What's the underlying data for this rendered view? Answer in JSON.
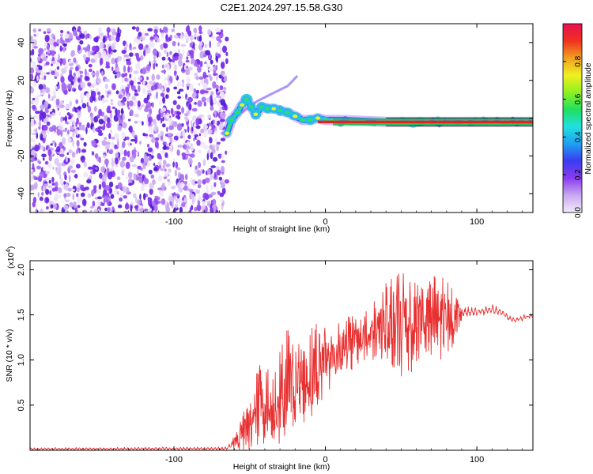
{
  "title": "C2E1.2024.297.15.58.G30",
  "colors": {
    "snr_line": "#e83030",
    "ridge_line": "#e82020",
    "scatter": "#7a1fe0",
    "axes": "#000000",
    "background": "#ffffff"
  },
  "colorbar": {
    "label": "Normalized spectral amplitude",
    "range": [
      0,
      1
    ],
    "ticks": [
      {
        "value": 0.0,
        "label": "0.0"
      },
      {
        "value": 0.2,
        "label": "0.2"
      },
      {
        "value": 0.4,
        "label": "0.4"
      },
      {
        "value": 0.6,
        "label": "0.6"
      },
      {
        "value": 0.8,
        "label": "0.8"
      }
    ],
    "colormap": [
      "#f2ecfb",
      "#c9a8f0",
      "#8a3cf0",
      "#3a3cf0",
      "#1fa0f0",
      "#20e0e0",
      "#20e060",
      "#90f020",
      "#f0f020",
      "#f0a020",
      "#f03020",
      "#e81050"
    ]
  },
  "chart_data": [
    {
      "type": "heatmap",
      "name": "spectrogram",
      "xlabel": "Height of straight line (km)",
      "ylabel": "Frequency (Hz)",
      "xlim": [
        -195,
        137
      ],
      "ylim": [
        -50,
        50
      ],
      "xticks": [
        {
          "value": -100,
          "label": "-100"
        },
        {
          "value": 0,
          "label": "0"
        },
        {
          "value": 100,
          "label": "100"
        }
      ],
      "yticks": [
        {
          "value": -40,
          "label": "-40"
        },
        {
          "value": -20,
          "label": "-20"
        },
        {
          "value": 0,
          "label": "0"
        },
        {
          "value": 20,
          "label": "20"
        },
        {
          "value": 40,
          "label": "40"
        }
      ],
      "noise_region": {
        "x_min": -195,
        "x_max": -65,
        "freq_range": [
          -50,
          48
        ]
      },
      "ridge": [
        {
          "x": -65,
          "f": -8
        },
        {
          "x": -62,
          "f": -1
        },
        {
          "x": -58,
          "f": 3
        },
        {
          "x": -55,
          "f": 7
        },
        {
          "x": -52,
          "f": 10
        },
        {
          "x": -49,
          "f": 6
        },
        {
          "x": -46,
          "f": 2
        },
        {
          "x": -42,
          "f": 6
        },
        {
          "x": -38,
          "f": 5
        },
        {
          "x": -34,
          "f": 5
        },
        {
          "x": -30,
          "f": 4
        },
        {
          "x": -25,
          "f": 3
        },
        {
          "x": -20,
          "f": 1
        },
        {
          "x": -15,
          "f": -1
        },
        {
          "x": -10,
          "f": -1
        },
        {
          "x": -5,
          "f": 0
        },
        {
          "x": 0,
          "f": -1
        },
        {
          "x": 10,
          "f": -1
        },
        {
          "x": 40,
          "f": -2
        },
        {
          "x": 80,
          "f": -2
        },
        {
          "x": 137,
          "f": -2
        }
      ],
      "side_branch": [
        {
          "x": -55,
          "f": 3
        },
        {
          "x": -45,
          "f": 9
        },
        {
          "x": -35,
          "f": 13
        },
        {
          "x": -25,
          "f": 17
        },
        {
          "x": -19,
          "f": 22
        }
      ],
      "steady_frequency": -2
    },
    {
      "type": "line",
      "name": "snr",
      "xlabel": "Height of straight line (km)",
      "ylabel": "SNR (10 * v/v)",
      "y_multiplier_label": "(x10",
      "y_multiplier_exp": "4",
      "y_multiplier_close": ")",
      "xlim": [
        -195,
        137
      ],
      "ylim": [
        0,
        2.1
      ],
      "xticks": [
        {
          "value": -100,
          "label": "-100"
        },
        {
          "value": 0,
          "label": "0"
        },
        {
          "value": 100,
          "label": "100"
        }
      ],
      "yticks": [
        {
          "value": 0.5,
          "label": "0.5"
        },
        {
          "value": 1.0,
          "label": "1.0"
        },
        {
          "value": 1.5,
          "label": "1.5"
        },
        {
          "value": 2.0,
          "label": "2.0"
        }
      ],
      "series": [
        {
          "envelope": [
            {
              "x": -195,
              "lo": 0.0,
              "hi": 0.03
            },
            {
              "x": -65,
              "lo": 0.0,
              "hi": 0.04
            },
            {
              "x": -58,
              "lo": 0.0,
              "hi": 0.25
            },
            {
              "x": -50,
              "lo": 0.0,
              "hi": 0.6
            },
            {
              "x": -45,
              "lo": 0.0,
              "hi": 0.95
            },
            {
              "x": -42,
              "lo": 0.02,
              "hi": 1.0
            },
            {
              "x": -35,
              "lo": 0.02,
              "hi": 0.85
            },
            {
              "x": -30,
              "lo": 0.05,
              "hi": 1.1
            },
            {
              "x": -25,
              "lo": 0.15,
              "hi": 1.4
            },
            {
              "x": -20,
              "lo": 0.3,
              "hi": 1.15
            },
            {
              "x": -15,
              "lo": 0.3,
              "hi": 1.25
            },
            {
              "x": -10,
              "lo": 0.35,
              "hi": 1.35
            },
            {
              "x": -5,
              "lo": 0.5,
              "hi": 1.45
            },
            {
              "x": 0,
              "lo": 0.6,
              "hi": 1.45
            },
            {
              "x": 5,
              "lo": 0.7,
              "hi": 1.35
            },
            {
              "x": 10,
              "lo": 0.85,
              "hi": 1.5
            },
            {
              "x": 20,
              "lo": 0.9,
              "hi": 1.5
            },
            {
              "x": 30,
              "lo": 1.0,
              "hi": 1.6
            },
            {
              "x": 40,
              "lo": 0.95,
              "hi": 1.85
            },
            {
              "x": 50,
              "lo": 0.75,
              "hi": 2.0
            },
            {
              "x": 55,
              "lo": 0.85,
              "hi": 2.05
            },
            {
              "x": 60,
              "lo": 0.9,
              "hi": 2.0
            },
            {
              "x": 70,
              "lo": 0.95,
              "hi": 1.95
            },
            {
              "x": 80,
              "lo": 0.95,
              "hi": 1.9
            },
            {
              "x": 90,
              "lo": 1.45,
              "hi": 1.6
            },
            {
              "x": 100,
              "lo": 1.48,
              "hi": 1.58
            },
            {
              "x": 110,
              "lo": 1.5,
              "hi": 1.62
            },
            {
              "x": 115,
              "lo": 1.5,
              "hi": 1.58
            },
            {
              "x": 120,
              "lo": 1.42,
              "hi": 1.52
            },
            {
              "x": 125,
              "lo": 1.4,
              "hi": 1.47
            },
            {
              "x": 130,
              "lo": 1.43,
              "hi": 1.5
            },
            {
              "x": 137,
              "lo": 1.47,
              "hi": 1.52
            }
          ]
        }
      ]
    }
  ]
}
